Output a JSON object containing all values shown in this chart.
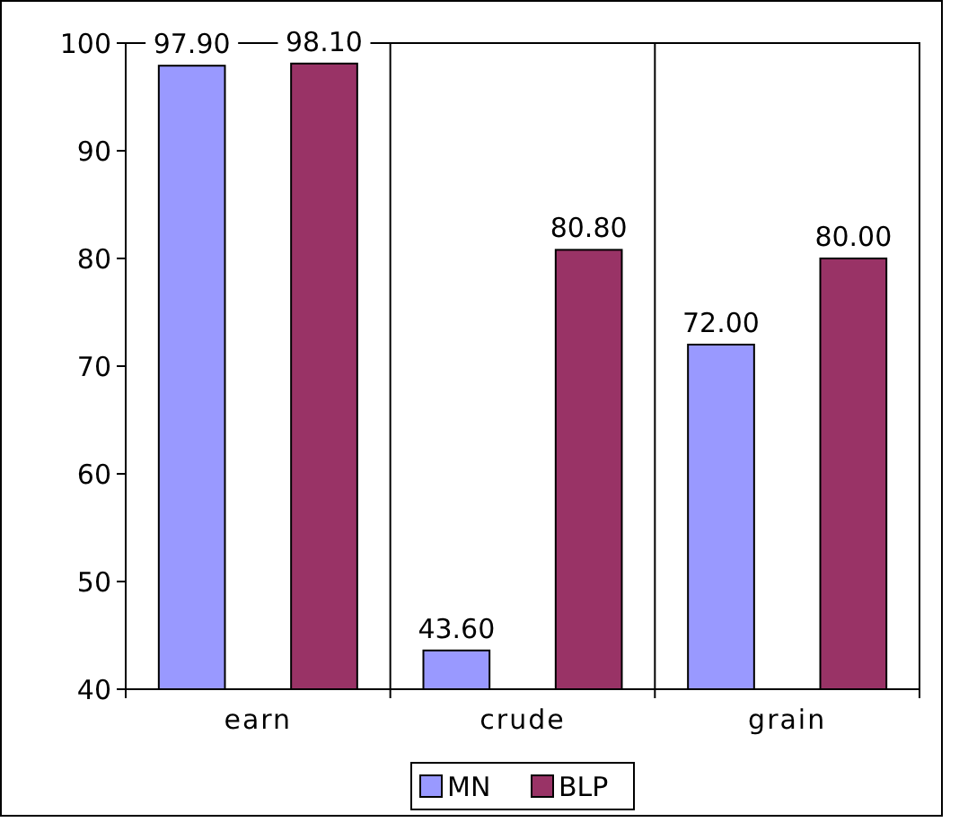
{
  "chart_data": {
    "type": "bar",
    "categories": [
      "earn",
      "crude",
      "grain"
    ],
    "series": [
      {
        "name": "MN",
        "color": "#9999ff",
        "values": [
          97.9,
          43.6,
          72.0
        ],
        "value_labels": [
          "97.90",
          "43.60",
          "72.00"
        ]
      },
      {
        "name": "BLP",
        "color": "#993366",
        "values": [
          98.1,
          80.8,
          80.0
        ],
        "value_labels": [
          "98.10",
          "80.80",
          "80.00"
        ]
      }
    ],
    "ylim": [
      40,
      100
    ],
    "yticks": [
      40,
      50,
      60,
      70,
      80,
      90,
      100
    ],
    "grid": "x",
    "legend": "bottom"
  }
}
